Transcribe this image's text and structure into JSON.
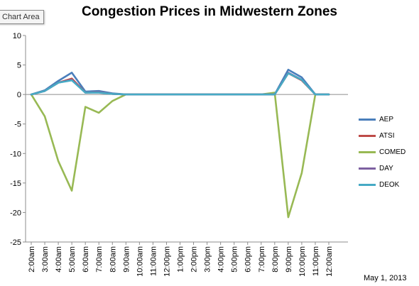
{
  "ui": {
    "chart_area_tag": "Chart Area"
  },
  "footnote": "May 1, 2013",
  "chart_data": {
    "type": "line",
    "title": "Congestion Prices in Midwestern Zones",
    "xlabel": "",
    "ylabel": "",
    "ylim": [
      -25,
      10
    ],
    "yticks": [
      10,
      5,
      0,
      -5,
      -10,
      -15,
      -20,
      -25
    ],
    "grid": false,
    "legend_position": "right",
    "categories": [
      "2:00am",
      "3:00am",
      "4:00am",
      "5:00am",
      "6:00am",
      "7:00am",
      "8:00am",
      "9:00am",
      "10:00am",
      "11:00am",
      "12:00pm",
      "1:00pm",
      "2:00pm",
      "3:00pm",
      "4:00pm",
      "5:00pm",
      "6:00pm",
      "7:00pm",
      "8:00pm",
      "9:00pm",
      "10:00pm",
      "11:00pm",
      "12:00am"
    ],
    "series": [
      {
        "name": "AEP",
        "color": "#4a7ebb",
        "values": [
          0,
          0.7,
          2.3,
          3.7,
          0.5,
          0.6,
          0.2,
          0,
          0,
          0,
          0,
          0,
          0,
          0,
          0,
          0,
          0,
          0,
          0,
          4.2,
          2.9,
          0,
          0
        ]
      },
      {
        "name": "ATSI",
        "color": "#be4b48",
        "values": [
          0,
          0.6,
          2.0,
          2.7,
          0.3,
          0.4,
          0.1,
          0,
          0,
          0,
          0,
          0,
          0,
          0,
          0,
          0,
          0,
          0,
          0,
          3.6,
          2.4,
          0,
          0
        ]
      },
      {
        "name": "COMED",
        "color": "#98b954",
        "values": [
          0,
          -3.7,
          -11.3,
          -16.3,
          -2.1,
          -3.1,
          -1.1,
          0,
          0,
          0,
          0,
          0,
          0,
          0,
          0,
          0,
          0,
          0,
          0.3,
          -20.8,
          -13.3,
          0,
          0
        ]
      },
      {
        "name": "DAY",
        "color": "#7d60a0",
        "values": [
          0,
          0.6,
          2.0,
          2.5,
          0.3,
          0.4,
          0.1,
          0,
          0,
          0,
          0,
          0,
          0,
          0,
          0,
          0,
          0,
          0,
          0,
          3.7,
          2.5,
          0,
          0
        ]
      },
      {
        "name": "DEOK",
        "color": "#46aac5",
        "values": [
          0,
          0.6,
          2.0,
          2.4,
          0.3,
          0.3,
          0.1,
          0,
          0,
          0,
          0,
          0,
          0,
          0,
          0,
          0,
          0,
          0,
          0,
          3.6,
          2.5,
          0,
          0
        ]
      }
    ]
  }
}
